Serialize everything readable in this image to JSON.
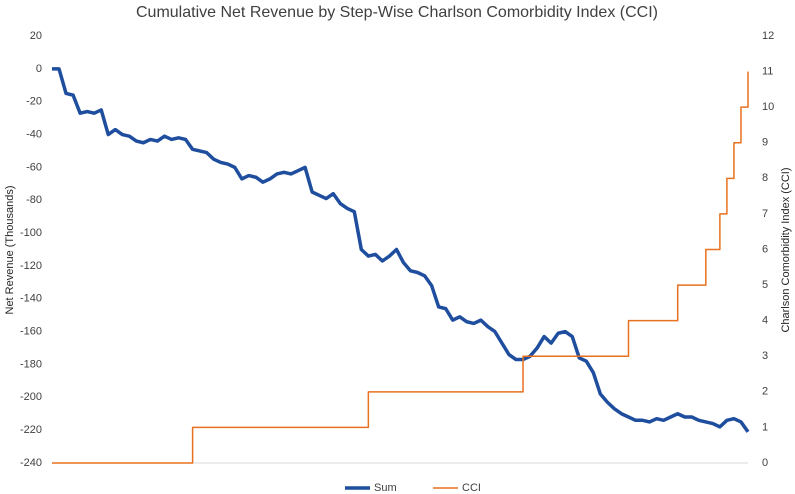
{
  "chart_data": {
    "type": "line",
    "title": "Cumulative Net Revenue by Step-Wise Charlson Comorbidity Index (CCI)",
    "ylabel": "Net Revenue (Thousands)",
    "y2label": "Charlson Comorbidity Index (CCI)",
    "ylim": [
      -240,
      20
    ],
    "yticks": [
      20,
      0,
      -20,
      -40,
      -60,
      -80,
      -100,
      -120,
      -140,
      -160,
      -180,
      -200,
      -220,
      -240
    ],
    "y2lim": [
      0,
      12
    ],
    "y2ticks": [
      12,
      11,
      10,
      9,
      8,
      7,
      6,
      5,
      4,
      3,
      2,
      1,
      0
    ],
    "grid": false,
    "legend": "bottom",
    "series": [
      {
        "name": "Sum",
        "color": "#1f4e9e",
        "style": "line",
        "values": [
          0,
          0,
          -15,
          -16,
          -27,
          -26,
          -27,
          -25,
          -40,
          -37,
          -40,
          -41,
          -44,
          -45,
          -43,
          -44,
          -41,
          -43,
          -42,
          -43,
          -49,
          -50,
          -51,
          -55,
          -57,
          -58,
          -60,
          -67,
          -65,
          -66,
          -69,
          -67,
          -64,
          -63,
          -64,
          -62,
          -60,
          -75,
          -77,
          -79,
          -76,
          -82,
          -85,
          -87,
          -110,
          -114,
          -113,
          -117,
          -114,
          -110,
          -118,
          -123,
          -124,
          -126,
          -132,
          -145,
          -146,
          -153,
          -151,
          -154,
          -155,
          -153,
          -157,
          -160,
          -167,
          -174,
          -177,
          -177,
          -175,
          -170,
          -163,
          -167,
          -161,
          -160,
          -163,
          -176,
          -178,
          -185,
          -198,
          -203,
          -207,
          -210,
          -212,
          -214,
          -214,
          -215,
          -213,
          -214,
          -212,
          -210,
          -212,
          -212,
          -214,
          -215,
          -216,
          -218,
          -214,
          -213,
          -215,
          -221
        ]
      },
      {
        "name": "CCI",
        "color": "#e8711f",
        "style": "step",
        "axis": "y2",
        "values": [
          0,
          0,
          0,
          0,
          0,
          0,
          0,
          0,
          0,
          0,
          0,
          0,
          0,
          0,
          0,
          0,
          0,
          0,
          0,
          0,
          1,
          1,
          1,
          1,
          1,
          1,
          1,
          1,
          1,
          1,
          1,
          1,
          1,
          1,
          1,
          1,
          1,
          1,
          1,
          1,
          1,
          1,
          1,
          1,
          1,
          2,
          2,
          2,
          2,
          2,
          2,
          2,
          2,
          2,
          2,
          2,
          2,
          2,
          2,
          2,
          2,
          2,
          2,
          2,
          2,
          2,
          2,
          3,
          3,
          3,
          3,
          3,
          3,
          3,
          3,
          3,
          3,
          3,
          3,
          3,
          3,
          3,
          4,
          4,
          4,
          4,
          4,
          4,
          4,
          5,
          5,
          5,
          5,
          6,
          6,
          7,
          8,
          9,
          10,
          11
        ]
      }
    ]
  }
}
